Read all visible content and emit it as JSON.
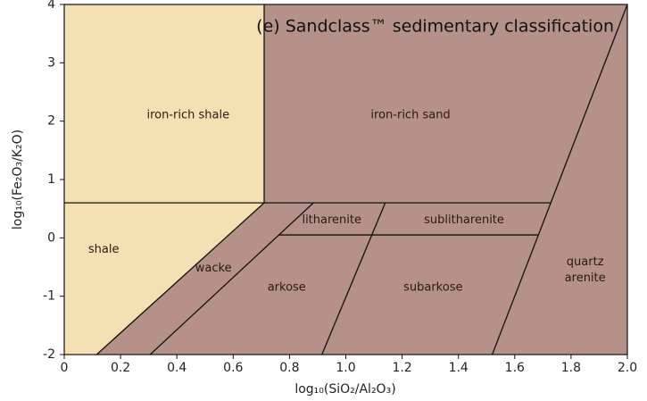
{
  "chart_data": {
    "type": "classification",
    "title": "(e) Sandclass™ sedimentary classification",
    "xlabel": "log₁₀(SiO₂/Al₂O₃)",
    "ylabel": "log₁₀(Fe₂O₃/K₂O)",
    "xlim": [
      0,
      2.0
    ],
    "ylim": [
      -2,
      4
    ],
    "xticks": [
      0,
      0.2,
      0.4,
      0.6,
      0.8,
      {
        "value": 1.0,
        "label": "1.0"
      },
      1.2,
      1.4,
      1.6,
      1.8,
      {
        "value": 2.0,
        "label": "2.0"
      }
    ],
    "yticks": [
      -2,
      -1,
      0,
      1,
      2,
      3,
      4
    ],
    "background_color": "#b59189",
    "shale_color": "#f4e0b3",
    "line_color": "#111111",
    "boundaries": [
      {
        "x": [
          0.71,
          0.71
        ],
        "y": [
          0.6,
          4
        ]
      },
      {
        "x": [
          0,
          1.728
        ],
        "y": [
          0.6,
          0.6
        ]
      },
      {
        "x": [
          0.71,
          0.115
        ],
        "y": [
          0.6,
          -2
        ]
      },
      {
        "x": [
          0.885,
          0.305
        ],
        "y": [
          0.6,
          -2
        ]
      },
      {
        "x": [
          0.762,
          1.684
        ],
        "y": [
          0.05,
          0.05
        ]
      },
      {
        "x": [
          1.14,
          0.915
        ],
        "y": [
          0.6,
          -2
        ]
      },
      {
        "x": [
          2.0,
          1.52
        ],
        "y": [
          4,
          -2
        ]
      }
    ],
    "regions": [
      {
        "lines": [
          "iron-rich shale"
        ]
      },
      {
        "lines": [
          "iron-rich sand"
        ]
      },
      {
        "lines": [
          "litharenite"
        ]
      },
      {
        "lines": [
          "sublitharenite"
        ]
      },
      {
        "lines": [
          "shale"
        ]
      },
      {
        "lines": [
          "wacke"
        ]
      },
      {
        "lines": [
          "arkose"
        ]
      },
      {
        "lines": [
          "subarkose"
        ]
      },
      {
        "lines": [
          "quartz",
          "arenite"
        ]
      }
    ]
  }
}
